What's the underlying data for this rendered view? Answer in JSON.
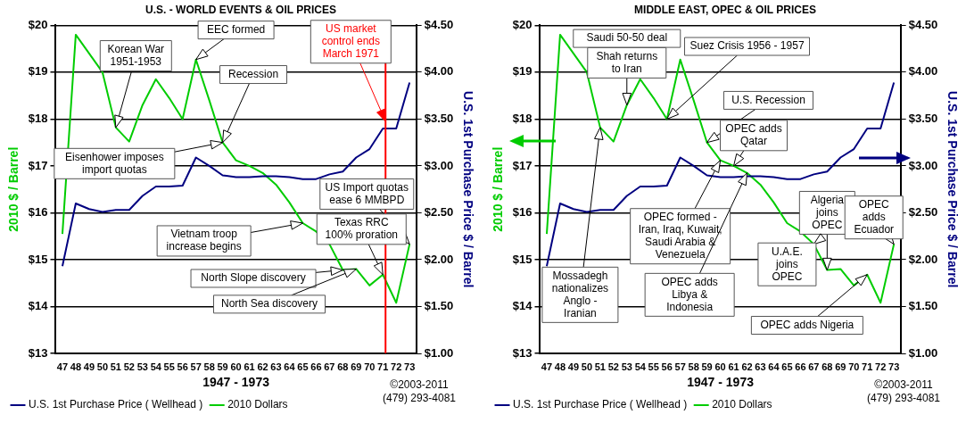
{
  "chart_data": [
    {
      "type": "line",
      "title": "U.S. - WORLD EVENTS & OIL PRICES",
      "xlabel": "1947 - 1973",
      "ylabel": "2010 $ / Barrel",
      "y2label": "U.S. 1st Purchase Price $ / Barrel",
      "x": [
        1947,
        1948,
        1949,
        1950,
        1951,
        1952,
        1953,
        1954,
        1955,
        1956,
        1957,
        1958,
        1959,
        1960,
        1961,
        1962,
        1963,
        1964,
        1965,
        1966,
        1967,
        1968,
        1969,
        1970,
        1971,
        1972,
        1973
      ],
      "xlim": [
        1946.5,
        1973.5
      ],
      "xticks": [
        {
          "value": 1947,
          "label": "47"
        },
        {
          "value": 1948,
          "label": "48"
        },
        {
          "value": 1949,
          "label": "49"
        },
        {
          "value": 1950,
          "label": "50"
        },
        {
          "value": 1951,
          "label": "51"
        },
        {
          "value": 1952,
          "label": "52"
        },
        {
          "value": 1953,
          "label": "53"
        },
        {
          "value": 1954,
          "label": "54"
        },
        {
          "value": 1955,
          "label": "55"
        },
        {
          "value": 1956,
          "label": "56"
        },
        {
          "value": 1957,
          "label": "57"
        },
        {
          "value": 1958,
          "label": "58"
        },
        {
          "value": 1959,
          "label": "59"
        },
        {
          "value": 1960,
          "label": "60"
        },
        {
          "value": 1961,
          "label": "61"
        },
        {
          "value": 1962,
          "label": "62"
        },
        {
          "value": 1963,
          "label": "63"
        },
        {
          "value": 1964,
          "label": "64"
        },
        {
          "value": 1965,
          "label": "65"
        },
        {
          "value": 1966,
          "label": "66"
        },
        {
          "value": 1967,
          "label": "67"
        },
        {
          "value": 1968,
          "label": "68"
        },
        {
          "value": 1969,
          "label": "69"
        },
        {
          "value": 1970,
          "label": "70"
        },
        {
          "value": 1971,
          "label": "71"
        },
        {
          "value": 1972,
          "label": "72"
        },
        {
          "value": 1973,
          "label": "73"
        }
      ],
      "ylim": [
        13,
        20
      ],
      "yticks": [
        {
          "value": 13,
          "label": "$13"
        },
        {
          "value": 14,
          "label": "$14"
        },
        {
          "value": 15,
          "label": "$15"
        },
        {
          "value": 16,
          "label": "$16"
        },
        {
          "value": 17,
          "label": "$17"
        },
        {
          "value": 18,
          "label": "$18"
        },
        {
          "value": 19,
          "label": "$19"
        },
        {
          "value": 20,
          "label": "$20"
        }
      ],
      "y2lim": [
        1,
        4.5
      ],
      "y2ticks": [
        {
          "value": 1,
          "label": "$1.00"
        },
        {
          "value": 1.5,
          "label": "$1.50"
        },
        {
          "value": 2,
          "label": "$2.00"
        },
        {
          "value": 2.5,
          "label": "$2.50"
        },
        {
          "value": 3,
          "label": "$3.00"
        },
        {
          "value": 3.5,
          "label": "$3.50"
        },
        {
          "value": 4,
          "label": "$4.00"
        },
        {
          "value": 4.5,
          "label": "$4.50"
        }
      ],
      "grid": "y",
      "legend": "bottom left",
      "marker": "none",
      "series": [
        {
          "name": "U.S. 1st Purchase Price ( Wellhead )",
          "color": "#000080",
          "axis": "y2",
          "values": [
            1.93,
            2.6,
            2.54,
            2.51,
            2.53,
            2.53,
            2.68,
            2.78,
            2.78,
            2.79,
            3.09,
            3.0,
            2.9,
            2.88,
            2.88,
            2.89,
            2.89,
            2.88,
            2.86,
            2.86,
            2.91,
            2.94,
            3.09,
            3.18,
            3.4,
            3.4,
            3.89
          ]
        },
        {
          "name": "2010 Dollars",
          "color": "#00cc00",
          "values": [
            15.55,
            19.8,
            19.4,
            19.0,
            17.82,
            17.52,
            18.3,
            18.85,
            18.45,
            18.0,
            19.27,
            18.4,
            17.5,
            17.12,
            17.0,
            16.85,
            16.6,
            16.22,
            15.78,
            15.6,
            15.33,
            14.78,
            14.8,
            14.45,
            14.68,
            14.08,
            15.33
          ]
        }
      ],
      "ref_lines": [
        {
          "axis": "x",
          "value": 1971.2,
          "label": "US market control ends March 1971",
          "color": "#ff0000"
        }
      ],
      "annotations": [
        {
          "text": "Korean War 1951-1953",
          "x": 1951,
          "y": 17.82
        },
        {
          "text": "EEC formed",
          "x": 1957,
          "y": 19.27
        },
        {
          "text": "Recession",
          "x": 1959,
          "y": 17.5
        },
        {
          "text": "Eisenhower imposes import quotas",
          "x": 1959,
          "y": 17.5
        },
        {
          "text": "US Import quotas ease 6 MMBPD",
          "x": 1973,
          "y": 15.33
        },
        {
          "text": "Texas RRC 100% proration",
          "x": 1971,
          "y": 14.68
        },
        {
          "text": "Vietnam troop increase begins",
          "x": 1965,
          "y": 15.78
        },
        {
          "text": "North Slope discovery",
          "x": 1968,
          "y": 14.78
        },
        {
          "text": "North Sea discovery",
          "x": 1969,
          "y": 14.8
        },
        "©2003-2011",
        "(479) 293-4081"
      ]
    },
    {
      "type": "line",
      "title": "MIDDLE EAST, OPEC & OIL PRICES",
      "xlabel": "1947 - 1973",
      "ylabel": "2010 $ / Barrel",
      "y2label": "U.S. 1st Purchase Price $ / Barrel",
      "x": [
        1947,
        1948,
        1949,
        1950,
        1951,
        1952,
        1953,
        1954,
        1955,
        1956,
        1957,
        1958,
        1959,
        1960,
        1961,
        1962,
        1963,
        1964,
        1965,
        1966,
        1967,
        1968,
        1969,
        1970,
        1971,
        1972,
        1973
      ],
      "xlim": [
        1946.5,
        1973.5
      ],
      "xticks": [
        {
          "value": 1947,
          "label": "47"
        },
        {
          "value": 1948,
          "label": "48"
        },
        {
          "value": 1949,
          "label": "49"
        },
        {
          "value": 1950,
          "label": "50"
        },
        {
          "value": 1951,
          "label": "51"
        },
        {
          "value": 1952,
          "label": "52"
        },
        {
          "value": 1953,
          "label": "53"
        },
        {
          "value": 1954,
          "label": "54"
        },
        {
          "value": 1955,
          "label": "55"
        },
        {
          "value": 1956,
          "label": "56"
        },
        {
          "value": 1957,
          "label": "57"
        },
        {
          "value": 1958,
          "label": "58"
        },
        {
          "value": 1959,
          "label": "59"
        },
        {
          "value": 1960,
          "label": "60"
        },
        {
          "value": 1961,
          "label": "61"
        },
        {
          "value": 1962,
          "label": "62"
        },
        {
          "value": 1963,
          "label": "63"
        },
        {
          "value": 1964,
          "label": "64"
        },
        {
          "value": 1965,
          "label": "65"
        },
        {
          "value": 1966,
          "label": "66"
        },
        {
          "value": 1967,
          "label": "67"
        },
        {
          "value": 1968,
          "label": "68"
        },
        {
          "value": 1969,
          "label": "69"
        },
        {
          "value": 1970,
          "label": "70"
        },
        {
          "value": 1971,
          "label": "71"
        },
        {
          "value": 1972,
          "label": "72"
        },
        {
          "value": 1973,
          "label": "73"
        }
      ],
      "ylim": [
        13,
        20
      ],
      "yticks": [
        {
          "value": 13,
          "label": "$13"
        },
        {
          "value": 14,
          "label": "$14"
        },
        {
          "value": 15,
          "label": "$15"
        },
        {
          "value": 16,
          "label": "$16"
        },
        {
          "value": 17,
          "label": "$17"
        },
        {
          "value": 18,
          "label": "$18"
        },
        {
          "value": 19,
          "label": "$19"
        },
        {
          "value": 20,
          "label": "$20"
        }
      ],
      "y2lim": [
        1,
        4.5
      ],
      "y2ticks": [
        {
          "value": 1,
          "label": "$1.00"
        },
        {
          "value": 1.5,
          "label": "$1.50"
        },
        {
          "value": 2,
          "label": "$2.00"
        },
        {
          "value": 2.5,
          "label": "$2.50"
        },
        {
          "value": 3,
          "label": "$3.00"
        },
        {
          "value": 3.5,
          "label": "$3.50"
        },
        {
          "value": 4,
          "label": "$4.00"
        },
        {
          "value": 4.5,
          "label": "$4.50"
        }
      ],
      "grid": "y",
      "legend": "bottom left",
      "marker": "none",
      "series": [
        {
          "name": "U.S. 1st Purchase Price ( Wellhead )",
          "color": "#000080",
          "axis": "y2",
          "values": [
            1.93,
            2.6,
            2.54,
            2.51,
            2.53,
            2.53,
            2.68,
            2.78,
            2.78,
            2.79,
            3.09,
            3.0,
            2.9,
            2.88,
            2.88,
            2.89,
            2.89,
            2.88,
            2.86,
            2.86,
            2.91,
            2.94,
            3.09,
            3.18,
            3.4,
            3.4,
            3.89
          ]
        },
        {
          "name": "2010 Dollars",
          "color": "#00cc00",
          "values": [
            15.55,
            19.8,
            19.4,
            19.0,
            17.82,
            17.52,
            18.3,
            18.85,
            18.45,
            18.0,
            19.27,
            18.4,
            17.5,
            17.12,
            17.0,
            16.85,
            16.6,
            16.22,
            15.78,
            15.6,
            15.33,
            14.78,
            14.8,
            14.45,
            14.68,
            14.08,
            15.33
          ]
        }
      ],
      "annotations": [
        {
          "text": "Saudi 50-50 deal",
          "x": 1950,
          "y": 19.0
        },
        {
          "text": "Shah returns to Iran",
          "x": 1953,
          "y": 18.3
        },
        {
          "text": "Suez Crisis 1956 - 1957",
          "x": 1956,
          "y": 18.0
        },
        {
          "text": "U.S. Recession",
          "x": 1959,
          "y": 17.5
        },
        {
          "text": "OPEC adds Qatar",
          "x": 1961,
          "y": 17.0
        },
        {
          "text": "OPEC formed - Iran, Iraq, Kuwait, Saudi Arabia & Venezuela",
          "x": 1960,
          "y": 17.12
        },
        {
          "text": "Mossadegh nationalizes Anglo - Iranian",
          "x": 1951,
          "y": 17.82
        },
        {
          "text": "OPEC adds Libya & Indonesia",
          "x": 1962,
          "y": 16.85
        },
        {
          "text": "Algeria joins OPEC",
          "x": 1968,
          "y": 14.78
        },
        {
          "text": "OPEC adds Ecuador",
          "x": 1973,
          "y": 15.33
        },
        {
          "text": "U.A.E. joins OPEC",
          "x": 1967,
          "y": 15.33
        },
        {
          "text": "OPEC adds Nigeria",
          "x": 1971,
          "y": 14.68
        },
        "©2003-2011",
        "(479) 293-4081"
      ]
    }
  ]
}
